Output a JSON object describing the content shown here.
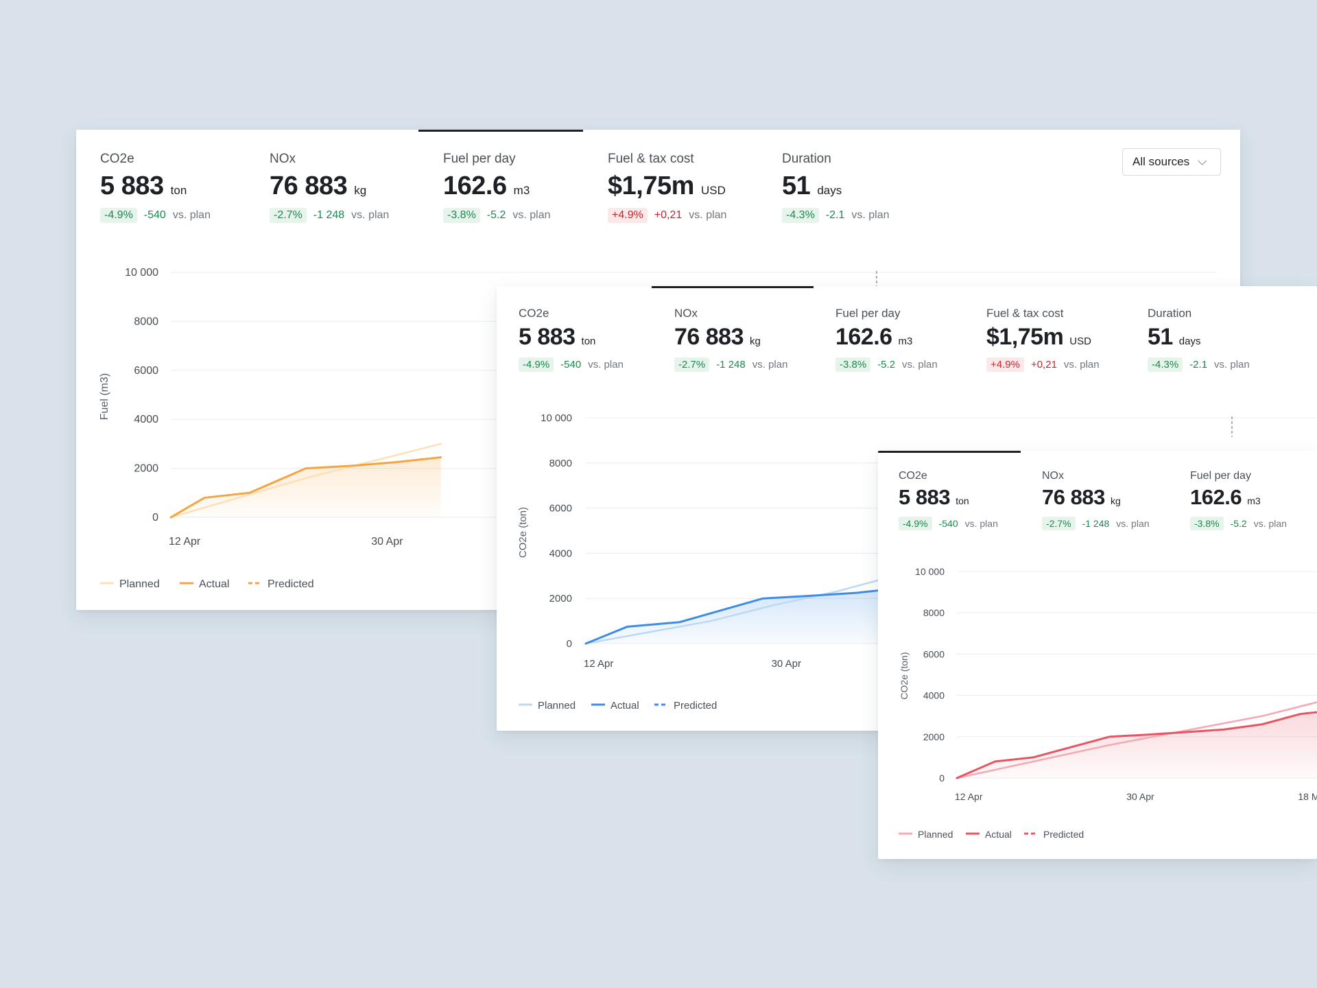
{
  "sources_dropdown": {
    "label": "All sources"
  },
  "cards": [
    {
      "id": "fuel",
      "metrics": [
        {
          "label": "CO2e",
          "value": "5 883",
          "unit": "ton",
          "pct": "-4.9%",
          "abs": "-540",
          "vs": "vs. plan",
          "trend": "good"
        },
        {
          "label": "NOx",
          "value": "76 883",
          "unit": "kg",
          "pct": "-2.7%",
          "abs": "-1 248",
          "vs": "vs. plan",
          "trend": "good"
        },
        {
          "label": "Fuel per day",
          "value": "162.6",
          "unit": "m3",
          "pct": "-3.8%",
          "abs": "-5.2",
          "vs": "vs. plan",
          "trend": "good"
        },
        {
          "label": "Fuel & tax cost",
          "value": "$1,75m",
          "unit": "USD",
          "pct": "+4.9%",
          "abs": "+0,21",
          "vs": "vs. plan",
          "trend": "bad"
        },
        {
          "label": "Duration",
          "value": "51",
          "unit": "days",
          "pct": "-4.3%",
          "abs": "-2.1",
          "vs": "vs. plan",
          "trend": "good"
        }
      ],
      "active_metric": 2
    },
    {
      "id": "co2e-blue",
      "metrics": [
        {
          "label": "CO2e",
          "value": "5 883",
          "unit": "ton",
          "pct": "-4.9%",
          "abs": "-540",
          "vs": "vs. plan",
          "trend": "good"
        },
        {
          "label": "NOx",
          "value": "76 883",
          "unit": "kg",
          "pct": "-2.7%",
          "abs": "-1 248",
          "vs": "vs. plan",
          "trend": "good"
        },
        {
          "label": "Fuel per day",
          "value": "162.6",
          "unit": "m3",
          "pct": "-3.8%",
          "abs": "-5.2",
          "vs": "vs. plan",
          "trend": "good"
        },
        {
          "label": "Fuel & tax cost",
          "value": "$1,75m",
          "unit": "USD",
          "pct": "+4.9%",
          "abs": "+0,21",
          "vs": "vs. plan",
          "trend": "bad"
        },
        {
          "label": "Duration",
          "value": "51",
          "unit": "days",
          "pct": "-4.3%",
          "abs": "-2.1",
          "vs": "vs. plan",
          "trend": "good"
        }
      ],
      "active_metric": 1
    },
    {
      "id": "co2e-red",
      "metrics": [
        {
          "label": "CO2e",
          "value": "5 883",
          "unit": "ton",
          "pct": "-4.9%",
          "abs": "-540",
          "vs": "vs. plan",
          "trend": "good"
        },
        {
          "label": "NOx",
          "value": "76 883",
          "unit": "kg",
          "pct": "-2.7%",
          "abs": "-1 248",
          "vs": "vs. plan",
          "trend": "good"
        },
        {
          "label": "Fuel per day",
          "value": "162.6",
          "unit": "m3",
          "pct": "-3.8%",
          "abs": "-5.2",
          "vs": "vs. plan",
          "trend": "good"
        }
      ],
      "active_metric": 0
    }
  ],
  "chart_data": [
    {
      "type": "area",
      "ylabel": "Fuel (m3)",
      "ylim": [
        0,
        10000
      ],
      "yticks": [
        0,
        2000,
        4000,
        6000,
        8000,
        10000
      ],
      "ytick_labels": [
        "0",
        "2000",
        "4000",
        "6000",
        "8000",
        "10 000"
      ],
      "x_tick_labels": [
        "12 Apr",
        "30 Apr"
      ],
      "x_ticks": [
        0,
        18
      ],
      "series": [
        {
          "name": "Planned",
          "x": [
            0,
            6,
            12,
            18,
            24
          ],
          "values": [
            0,
            800,
            1600,
            2300,
            3000
          ],
          "color": "#fbe0b8"
        },
        {
          "name": "Actual",
          "x": [
            0,
            3,
            7,
            12,
            16,
            20,
            24
          ],
          "values": [
            0,
            800,
            1000,
            2000,
            2100,
            2250,
            2450
          ],
          "color": "#f4a541"
        },
        {
          "name": "Predicted",
          "x": [],
          "values": [],
          "color": "#f4a541"
        }
      ],
      "legend": "bottom-left",
      "grid": true
    },
    {
      "type": "area",
      "ylabel": "CO2e (ton)",
      "ylim": [
        0,
        10000
      ],
      "yticks": [
        0,
        2000,
        4000,
        6000,
        8000,
        10000
      ],
      "ytick_labels": [
        "0",
        "2000",
        "4000",
        "6000",
        "8000",
        "10 000"
      ],
      "x_tick_labels": [
        "12 Apr",
        "30 Apr"
      ],
      "x_ticks": [
        0,
        18
      ],
      "series": [
        {
          "name": "Planned",
          "x": [
            0,
            6,
            12,
            18,
            24,
            28
          ],
          "values": [
            0,
            500,
            1000,
            1700,
            2300,
            2800
          ],
          "color": "#bcd9f6"
        },
        {
          "name": "Actual",
          "x": [
            0,
            4,
            9,
            17,
            21,
            26,
            28
          ],
          "values": [
            0,
            750,
            950,
            2000,
            2100,
            2250,
            2350
          ],
          "color": "#3f8ce4"
        },
        {
          "name": "Predicted",
          "x": [],
          "values": [],
          "color": "#3f8ce4"
        }
      ],
      "legend": "bottom-left",
      "grid": true
    },
    {
      "type": "area",
      "ylabel": "CO2e (ton)",
      "ylim": [
        0,
        10000
      ],
      "yticks": [
        0,
        2000,
        4000,
        6000,
        8000,
        10000
      ],
      "ytick_labels": [
        "0",
        "2000",
        "4000",
        "6000",
        "8000",
        "10 000"
      ],
      "x_tick_labels": [
        "12 Apr",
        "30 Apr",
        "18 M"
      ],
      "x_ticks": [
        0,
        18,
        36
      ],
      "series": [
        {
          "name": "Planned",
          "x": [
            0,
            8,
            16,
            24,
            32,
            38
          ],
          "values": [
            0,
            800,
            1600,
            2300,
            3000,
            3700
          ],
          "color": "#f5aab3"
        },
        {
          "name": "Actual",
          "x": [
            0,
            4,
            8,
            16,
            20,
            28,
            32,
            36,
            38
          ],
          "values": [
            0,
            800,
            1000,
            2000,
            2100,
            2350,
            2600,
            3100,
            3200
          ],
          "color": "#e55563"
        },
        {
          "name": "Predicted",
          "x": [],
          "values": [],
          "color": "#e55563"
        }
      ],
      "legend": "bottom-left",
      "grid": true
    }
  ]
}
